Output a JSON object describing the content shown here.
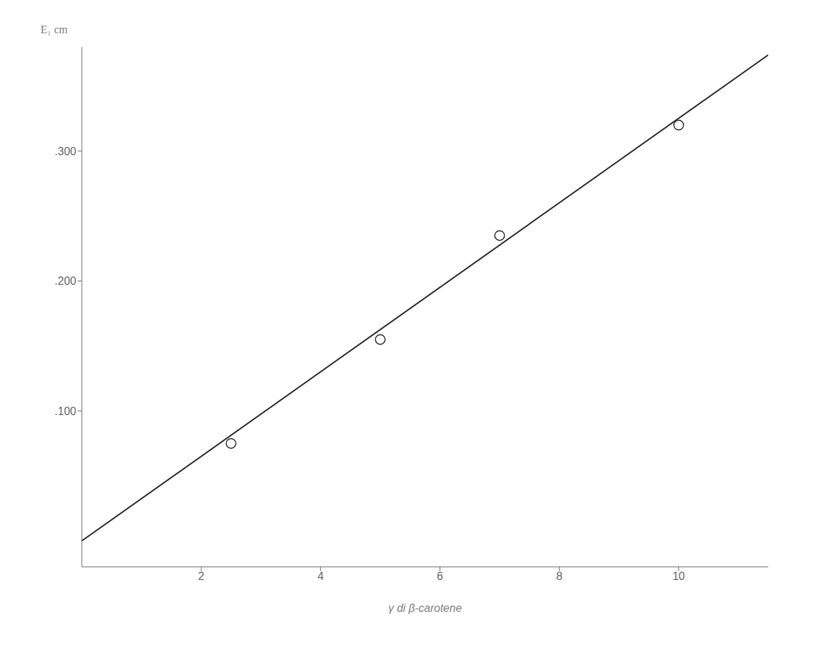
{
  "chart_data": {
    "type": "scatter",
    "xlabel": "γ di β-carotene",
    "ylabel": "E₁ cm",
    "xlim": [
      0,
      11.5
    ],
    "ylim": [
      -0.02,
      0.38
    ],
    "xticks": [
      2,
      4,
      6,
      8,
      10
    ],
    "yticks": [
      {
        "value": 0.1,
        "label": ".100"
      },
      {
        "value": 0.2,
        "label": ".200"
      },
      {
        "value": 0.3,
        "label": ".300"
      }
    ],
    "series": [
      {
        "type": "line",
        "x": [
          0.0,
          11.5
        ],
        "values": [
          0.0,
          0.374
        ],
        "color": "#2a2a2a"
      },
      {
        "type": "scatter",
        "x": [
          2.5,
          5.0,
          7.0,
          10.0
        ],
        "values": [
          0.075,
          0.155,
          0.235,
          0.32
        ],
        "color": "#2a2a2a",
        "marker": "circle"
      }
    ]
  }
}
